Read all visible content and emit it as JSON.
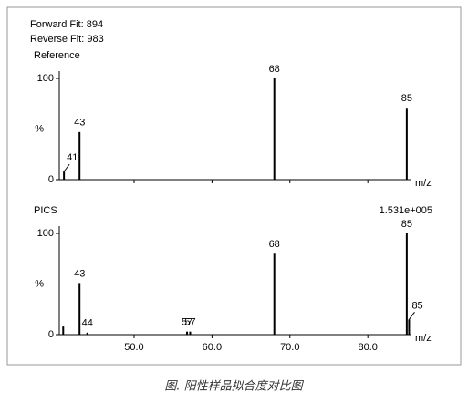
{
  "caption": "图. 阳性样品拟合度对比图",
  "chart_data": [
    {
      "type": "bar",
      "annotations": [
        "Forward Fit: 894",
        "Reverse Fit: 983"
      ],
      "title": "Reference",
      "x": [
        41,
        43,
        68,
        85
      ],
      "values": [
        8,
        47,
        100,
        71
      ],
      "peak_labels": [
        "41",
        "43",
        "68",
        "85"
      ],
      "xlim": [
        40.4,
        85.6
      ],
      "xticks": [
        50,
        60,
        70,
        80
      ],
      "ylim": [
        0,
        100
      ],
      "yticks": [
        0,
        100
      ],
      "ylabel": "%",
      "xlabel": "m/z",
      "color": "#000000"
    },
    {
      "type": "bar",
      "title": "PICS",
      "scale_label": "1.531e+005",
      "x": [
        40.9,
        43,
        44,
        56.8,
        57.2,
        68,
        85,
        85.3
      ],
      "values": [
        8,
        51,
        2,
        3,
        3,
        80,
        100,
        15
      ],
      "peak_labels": [
        null,
        "43",
        "44",
        "57",
        "57",
        "68",
        "85",
        "85"
      ],
      "xlim": [
        40.4,
        85.6
      ],
      "xticks": [
        {
          "value": 50,
          "label": "50.0"
        },
        {
          "value": 60,
          "label": "60.0"
        },
        {
          "value": 70,
          "label": "70.0"
        },
        {
          "value": 80,
          "label": "80.0"
        }
      ],
      "ylim": [
        0,
        100
      ],
      "yticks": [
        0,
        100
      ],
      "ylabel": "%",
      "xlabel": "m/z",
      "color": "#000000"
    }
  ]
}
